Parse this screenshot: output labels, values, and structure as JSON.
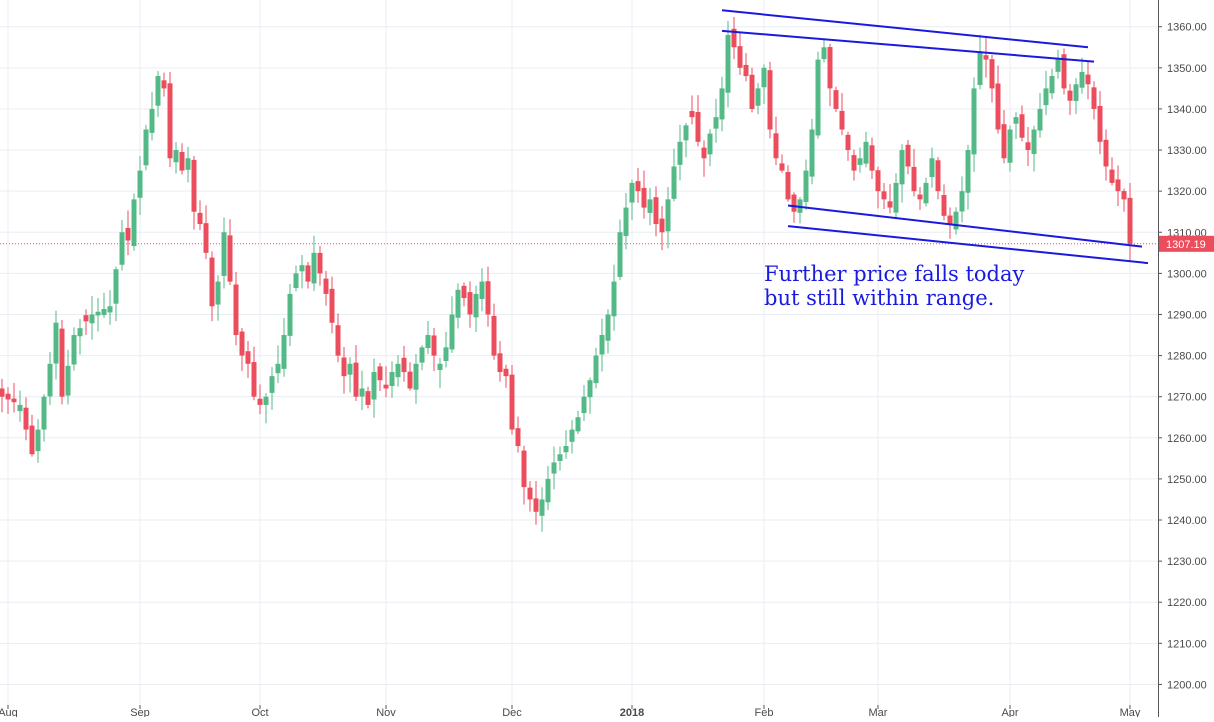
{
  "chart_data": {
    "type": "candlestick",
    "title": "",
    "xlabel": "",
    "ylabel": "",
    "ylim": [
      1195,
      1366.5
    ],
    "yticks": [
      1200,
      1210,
      1220,
      1230,
      1240,
      1250,
      1260,
      1270,
      1280,
      1290,
      1300,
      1310,
      1320,
      1330,
      1340,
      1350,
      1360
    ],
    "ytick_labels": [
      "1200.00",
      "1210.00",
      "1220.00",
      "1230.00",
      "1240.00",
      "1250.00",
      "1260.00",
      "1270.00",
      "1280.00",
      "1290.00",
      "1300.00",
      "1310.00",
      "1320.00",
      "1330.00",
      "1340.00",
      "1350.00",
      "1360.00"
    ],
    "xlim": [
      0,
      198
    ],
    "xticks": [
      {
        "label": "Aug",
        "bar": 1,
        "bold": false
      },
      {
        "label": "Sep",
        "bar": 23,
        "bold": false
      },
      {
        "label": "Oct",
        "bar": 43,
        "bold": false
      },
      {
        "label": "Nov",
        "bar": 64,
        "bold": false
      },
      {
        "label": "Dec",
        "bar": 85,
        "bold": false
      },
      {
        "label": "2018",
        "bar": 105,
        "bold": true
      },
      {
        "label": "Feb",
        "bar": 127,
        "bold": false
      },
      {
        "label": "Mar",
        "bar": 146,
        "bold": false
      },
      {
        "label": "Apr",
        "bar": 168,
        "bold": false
      },
      {
        "label": "May",
        "bar": 188,
        "bold": false
      }
    ],
    "anchors": [
      [
        0,
        1270
      ],
      [
        3,
        1268
      ],
      [
        5,
        1256
      ],
      [
        6,
        1262
      ],
      [
        8,
        1278
      ],
      [
        9,
        1288
      ],
      [
        10,
        1270
      ],
      [
        12,
        1285
      ],
      [
        15,
        1290
      ],
      [
        18,
        1292
      ],
      [
        20,
        1310
      ],
      [
        21,
        1308
      ],
      [
        22,
        1318
      ],
      [
        23,
        1325
      ],
      [
        24,
        1335
      ],
      [
        25,
        1340
      ],
      [
        26,
        1348
      ],
      [
        27,
        1345
      ],
      [
        28,
        1328
      ],
      [
        29,
        1330
      ],
      [
        30,
        1325
      ],
      [
        31,
        1328
      ],
      [
        32,
        1315
      ],
      [
        33,
        1312
      ],
      [
        34,
        1305
      ],
      [
        35,
        1292
      ],
      [
        36,
        1298
      ],
      [
        37,
        1310
      ],
      [
        38,
        1298
      ],
      [
        39,
        1285
      ],
      [
        40,
        1280
      ],
      [
        41,
        1278
      ],
      [
        42,
        1270
      ],
      [
        43,
        1268
      ],
      [
        44,
        1270
      ],
      [
        45,
        1275
      ],
      [
        46,
        1278
      ],
      [
        47,
        1285
      ],
      [
        48,
        1295
      ],
      [
        49,
        1300
      ],
      [
        50,
        1302
      ],
      [
        51,
        1298
      ],
      [
        52,
        1305
      ],
      [
        53,
        1300
      ],
      [
        54,
        1295
      ],
      [
        55,
        1288
      ],
      [
        56,
        1280
      ],
      [
        57,
        1275
      ],
      [
        58,
        1278
      ],
      [
        59,
        1270
      ],
      [
        60,
        1272
      ],
      [
        61,
        1268
      ],
      [
        62,
        1276
      ],
      [
        63,
        1274
      ],
      [
        64,
        1272
      ],
      [
        65,
        1276
      ],
      [
        66,
        1278
      ],
      [
        67,
        1276
      ],
      [
        68,
        1272
      ],
      [
        69,
        1278
      ],
      [
        70,
        1282
      ],
      [
        71,
        1285
      ],
      [
        72,
        1280
      ],
      [
        73,
        1278
      ],
      [
        74,
        1282
      ],
      [
        75,
        1290
      ],
      [
        76,
        1296
      ],
      [
        77,
        1294
      ],
      [
        78,
        1290
      ],
      [
        79,
        1295
      ],
      [
        80,
        1298
      ],
      [
        81,
        1290
      ],
      [
        82,
        1280
      ],
      [
        83,
        1276
      ],
      [
        84,
        1275
      ],
      [
        85,
        1262
      ],
      [
        86,
        1258
      ],
      [
        87,
        1248
      ],
      [
        88,
        1245
      ],
      [
        89,
        1242
      ],
      [
        90,
        1245
      ],
      [
        91,
        1250
      ],
      [
        92,
        1254
      ],
      [
        93,
        1256
      ],
      [
        94,
        1258
      ],
      [
        95,
        1262
      ],
      [
        96,
        1265
      ],
      [
        97,
        1270
      ],
      [
        98,
        1274
      ],
      [
        99,
        1280
      ],
      [
        100,
        1285
      ],
      [
        101,
        1290
      ],
      [
        102,
        1298
      ],
      [
        103,
        1310
      ],
      [
        104,
        1316
      ],
      [
        105,
        1322
      ],
      [
        106,
        1320
      ],
      [
        107,
        1316
      ],
      [
        108,
        1318
      ],
      [
        109,
        1312
      ],
      [
        110,
        1310
      ],
      [
        111,
        1318
      ],
      [
        112,
        1326
      ],
      [
        113,
        1332
      ],
      [
        114,
        1336
      ],
      [
        115,
        1338
      ],
      [
        116,
        1332
      ],
      [
        117,
        1328
      ],
      [
        118,
        1334
      ],
      [
        119,
        1338
      ],
      [
        120,
        1345
      ],
      [
        121,
        1358
      ],
      [
        122,
        1355
      ],
      [
        123,
        1350
      ],
      [
        124,
        1348
      ],
      [
        125,
        1340
      ],
      [
        126,
        1345
      ],
      [
        127,
        1350
      ],
      [
        128,
        1335
      ],
      [
        129,
        1328
      ],
      [
        130,
        1325
      ],
      [
        131,
        1318
      ],
      [
        132,
        1315
      ],
      [
        133,
        1318
      ],
      [
        134,
        1325
      ],
      [
        135,
        1335
      ],
      [
        136,
        1352
      ],
      [
        137,
        1355
      ],
      [
        138,
        1345
      ],
      [
        139,
        1340
      ],
      [
        140,
        1335
      ],
      [
        141,
        1330
      ],
      [
        142,
        1325
      ],
      [
        143,
        1328
      ],
      [
        144,
        1332
      ],
      [
        145,
        1325
      ],
      [
        146,
        1320
      ],
      [
        147,
        1318
      ],
      [
        148,
        1316
      ],
      [
        149,
        1322
      ],
      [
        150,
        1330
      ],
      [
        151,
        1326
      ],
      [
        152,
        1320
      ],
      [
        153,
        1318
      ],
      [
        154,
        1322
      ],
      [
        155,
        1328
      ],
      [
        156,
        1320
      ],
      [
        157,
        1314
      ],
      [
        158,
        1312
      ],
      [
        159,
        1315
      ],
      [
        160,
        1320
      ],
      [
        161,
        1330
      ],
      [
        162,
        1345
      ],
      [
        163,
        1354
      ],
      [
        164,
        1352
      ],
      [
        165,
        1345
      ],
      [
        166,
        1335
      ],
      [
        167,
        1328
      ],
      [
        168,
        1335
      ],
      [
        169,
        1338
      ],
      [
        170,
        1333
      ],
      [
        171,
        1330
      ],
      [
        172,
        1335
      ],
      [
        173,
        1340
      ],
      [
        174,
        1345
      ],
      [
        175,
        1348
      ],
      [
        176,
        1352
      ],
      [
        177,
        1345
      ],
      [
        178,
        1342
      ],
      [
        179,
        1346
      ],
      [
        180,
        1349
      ],
      [
        181,
        1346
      ],
      [
        182,
        1340
      ],
      [
        183,
        1332
      ],
      [
        184,
        1326
      ],
      [
        185,
        1322
      ],
      [
        186,
        1320
      ],
      [
        187,
        1318
      ],
      [
        188,
        1307.19
      ]
    ],
    "last_price": 1307.19,
    "last_price_label": "1307.19",
    "colors": {
      "up": "#53b987",
      "down": "#eb4d5c",
      "trendline": "#1a1adf",
      "grid": "#e9eef3",
      "price_line": "#eb4d5c"
    },
    "trendlines": [
      {
        "p1": [
          120,
          1364
        ],
        "p2": [
          181,
          1355
        ]
      },
      {
        "p1": [
          120,
          1359
        ],
        "p2": [
          182,
          1351.5
        ]
      },
      {
        "p1": [
          131,
          1316.5
        ],
        "p2": [
          190,
          1306.5
        ]
      },
      {
        "p1": [
          131,
          1311.5
        ],
        "p2": [
          191,
          1302.5
        ]
      }
    ],
    "annotation": {
      "line1": "Further  price  falls  today",
      "line2": "but  still  within  range."
    }
  }
}
